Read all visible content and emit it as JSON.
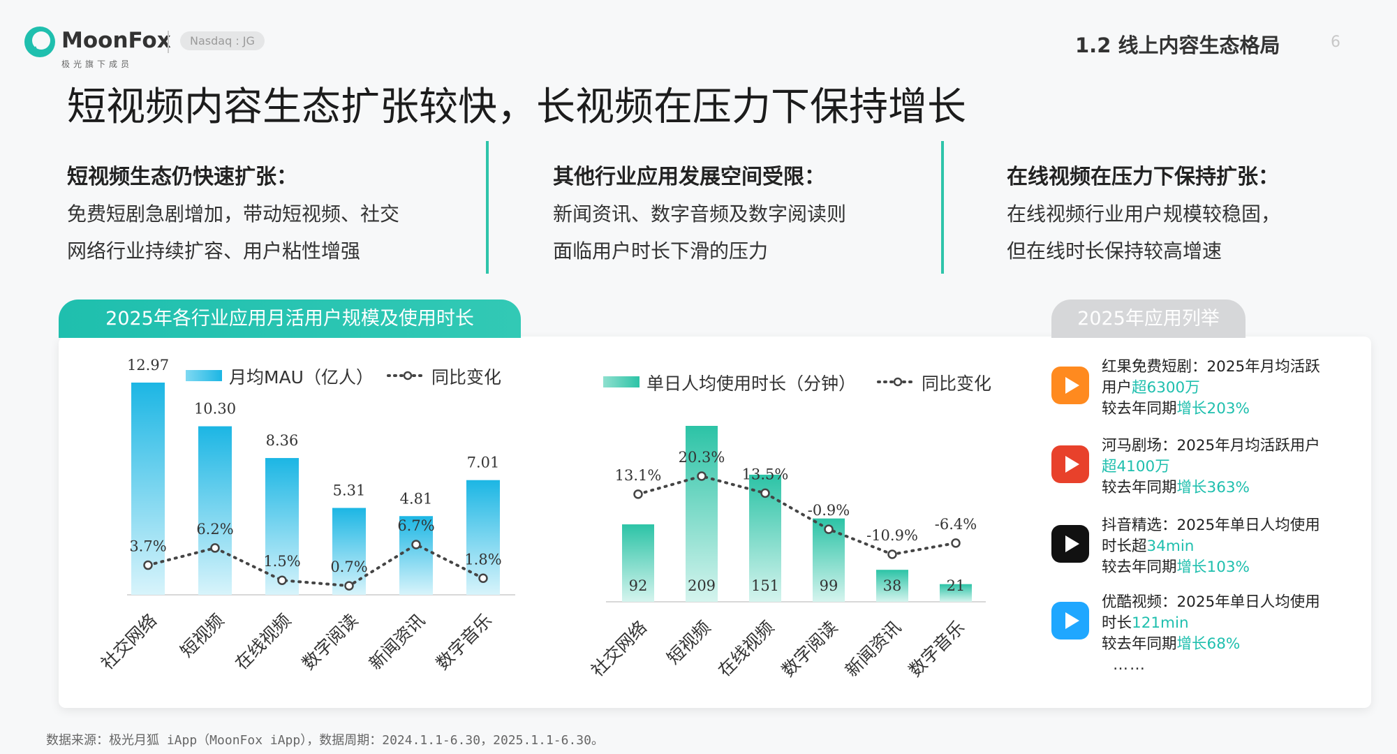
{
  "header": {
    "brand": "MoonFox",
    "brand_sub": "极光旗下成员",
    "ticker": "Nasdaq : JG",
    "section_title": "1.2 线上内容生态格局",
    "page_number": "6"
  },
  "main_title": "短视频内容生态扩张较快，长视频在压力下保持增长",
  "columns": [
    {
      "title": "短视频生态仍快速扩张：",
      "lines": [
        "免费短剧急剧增加，带动短视频、社交",
        "网络行业持续扩容、用户粘性增强"
      ]
    },
    {
      "title": "其他行业应用发展空间受限：",
      "lines": [
        "新闻资讯、数字音频及数字阅读则",
        "面临用户时长下滑的压力"
      ]
    },
    {
      "title": "在线视频在压力下保持扩张：",
      "lines": [
        "在线视频行业用户规模较稳固，",
        "但在线时长保持较高增速"
      ]
    }
  ],
  "chart_tab": "2025年各行业应用月活用户规模及使用时长",
  "apps_tab": "2025年应用列举",
  "chart_data": [
    {
      "type": "bar",
      "categories": [
        "社交网络",
        "短视频",
        "在线视频",
        "数字阅读",
        "新闻资讯",
        "数字音乐"
      ],
      "series": [
        {
          "name": "月均MAU（亿人）",
          "values": [
            12.97,
            10.3,
            8.36,
            5.31,
            4.81,
            7.01
          ],
          "labels": [
            "12.97",
            "10.30",
            "8.36",
            "5.31",
            "4.81",
            "7.01"
          ]
        },
        {
          "name": "同比变化",
          "type": "line",
          "values": [
            3.7,
            6.2,
            1.5,
            0.7,
            6.7,
            1.8
          ],
          "labels": [
            "3.7%",
            "6.2%",
            "1.5%",
            "0.7%",
            "6.7%",
            "1.8%"
          ]
        }
      ],
      "bar_color": "#22bde3",
      "line_color": "#444444"
    },
    {
      "type": "bar",
      "categories": [
        "社交网络",
        "短视频",
        "在线视频",
        "数字阅读",
        "新闻资讯",
        "数字音乐"
      ],
      "series": [
        {
          "name": "单日人均使用时长（分钟）",
          "values": [
            92,
            209,
            151,
            99,
            38,
            21
          ],
          "labels": [
            "92",
            "209",
            "151",
            "99",
            "38",
            "21"
          ]
        },
        {
          "name": "同比变化",
          "type": "line",
          "values": [
            13.1,
            20.3,
            13.5,
            -0.9,
            -10.9,
            -6.4
          ],
          "labels": [
            "13.1%",
            "20.3%",
            "13.5%",
            "-0.9%",
            "-10.9%",
            "-6.4%"
          ]
        }
      ],
      "bar_color": "#2ec4aa",
      "line_color": "#444444"
    }
  ],
  "apps": [
    {
      "icon": "hongguo-icon",
      "color": "#ff8a1f",
      "parts": [
        [
          "红果免费短剧：2025年月均活跃用户",
          false
        ],
        [
          "超6300万",
          true
        ]
      ],
      "line2": [
        [
          "较去年同期",
          false
        ],
        [
          "增长203%",
          true
        ]
      ]
    },
    {
      "icon": "hema-icon",
      "color": "#e8412b",
      "parts": [
        [
          "河马剧场：2025年月均活跃用户",
          false
        ],
        [
          "超4100万",
          true
        ]
      ],
      "line2": [
        [
          "较去年同期",
          false
        ],
        [
          "增长363%",
          true
        ]
      ]
    },
    {
      "icon": "douyin-icon",
      "color": "#111111",
      "parts": [
        [
          "抖音精选：2025年单日人均使用时长超",
          false
        ],
        [
          "34min",
          true
        ]
      ],
      "line2": [
        [
          "较去年同期",
          false
        ],
        [
          "增长103%",
          true
        ]
      ]
    },
    {
      "icon": "youku-icon",
      "color": "#1fa7ff",
      "parts": [
        [
          "优酷视频：2025年单日人均使用时长",
          false
        ],
        [
          "121min",
          true
        ]
      ],
      "line2": [
        [
          "较去年同期",
          false
        ],
        [
          "增长68%",
          true
        ]
      ]
    }
  ],
  "more": "……",
  "footer": "数据来源：极光月狐 iApp（MoonFox iApp），数据周期：2024.1.1-6.30，2025.1.1-6.30。"
}
